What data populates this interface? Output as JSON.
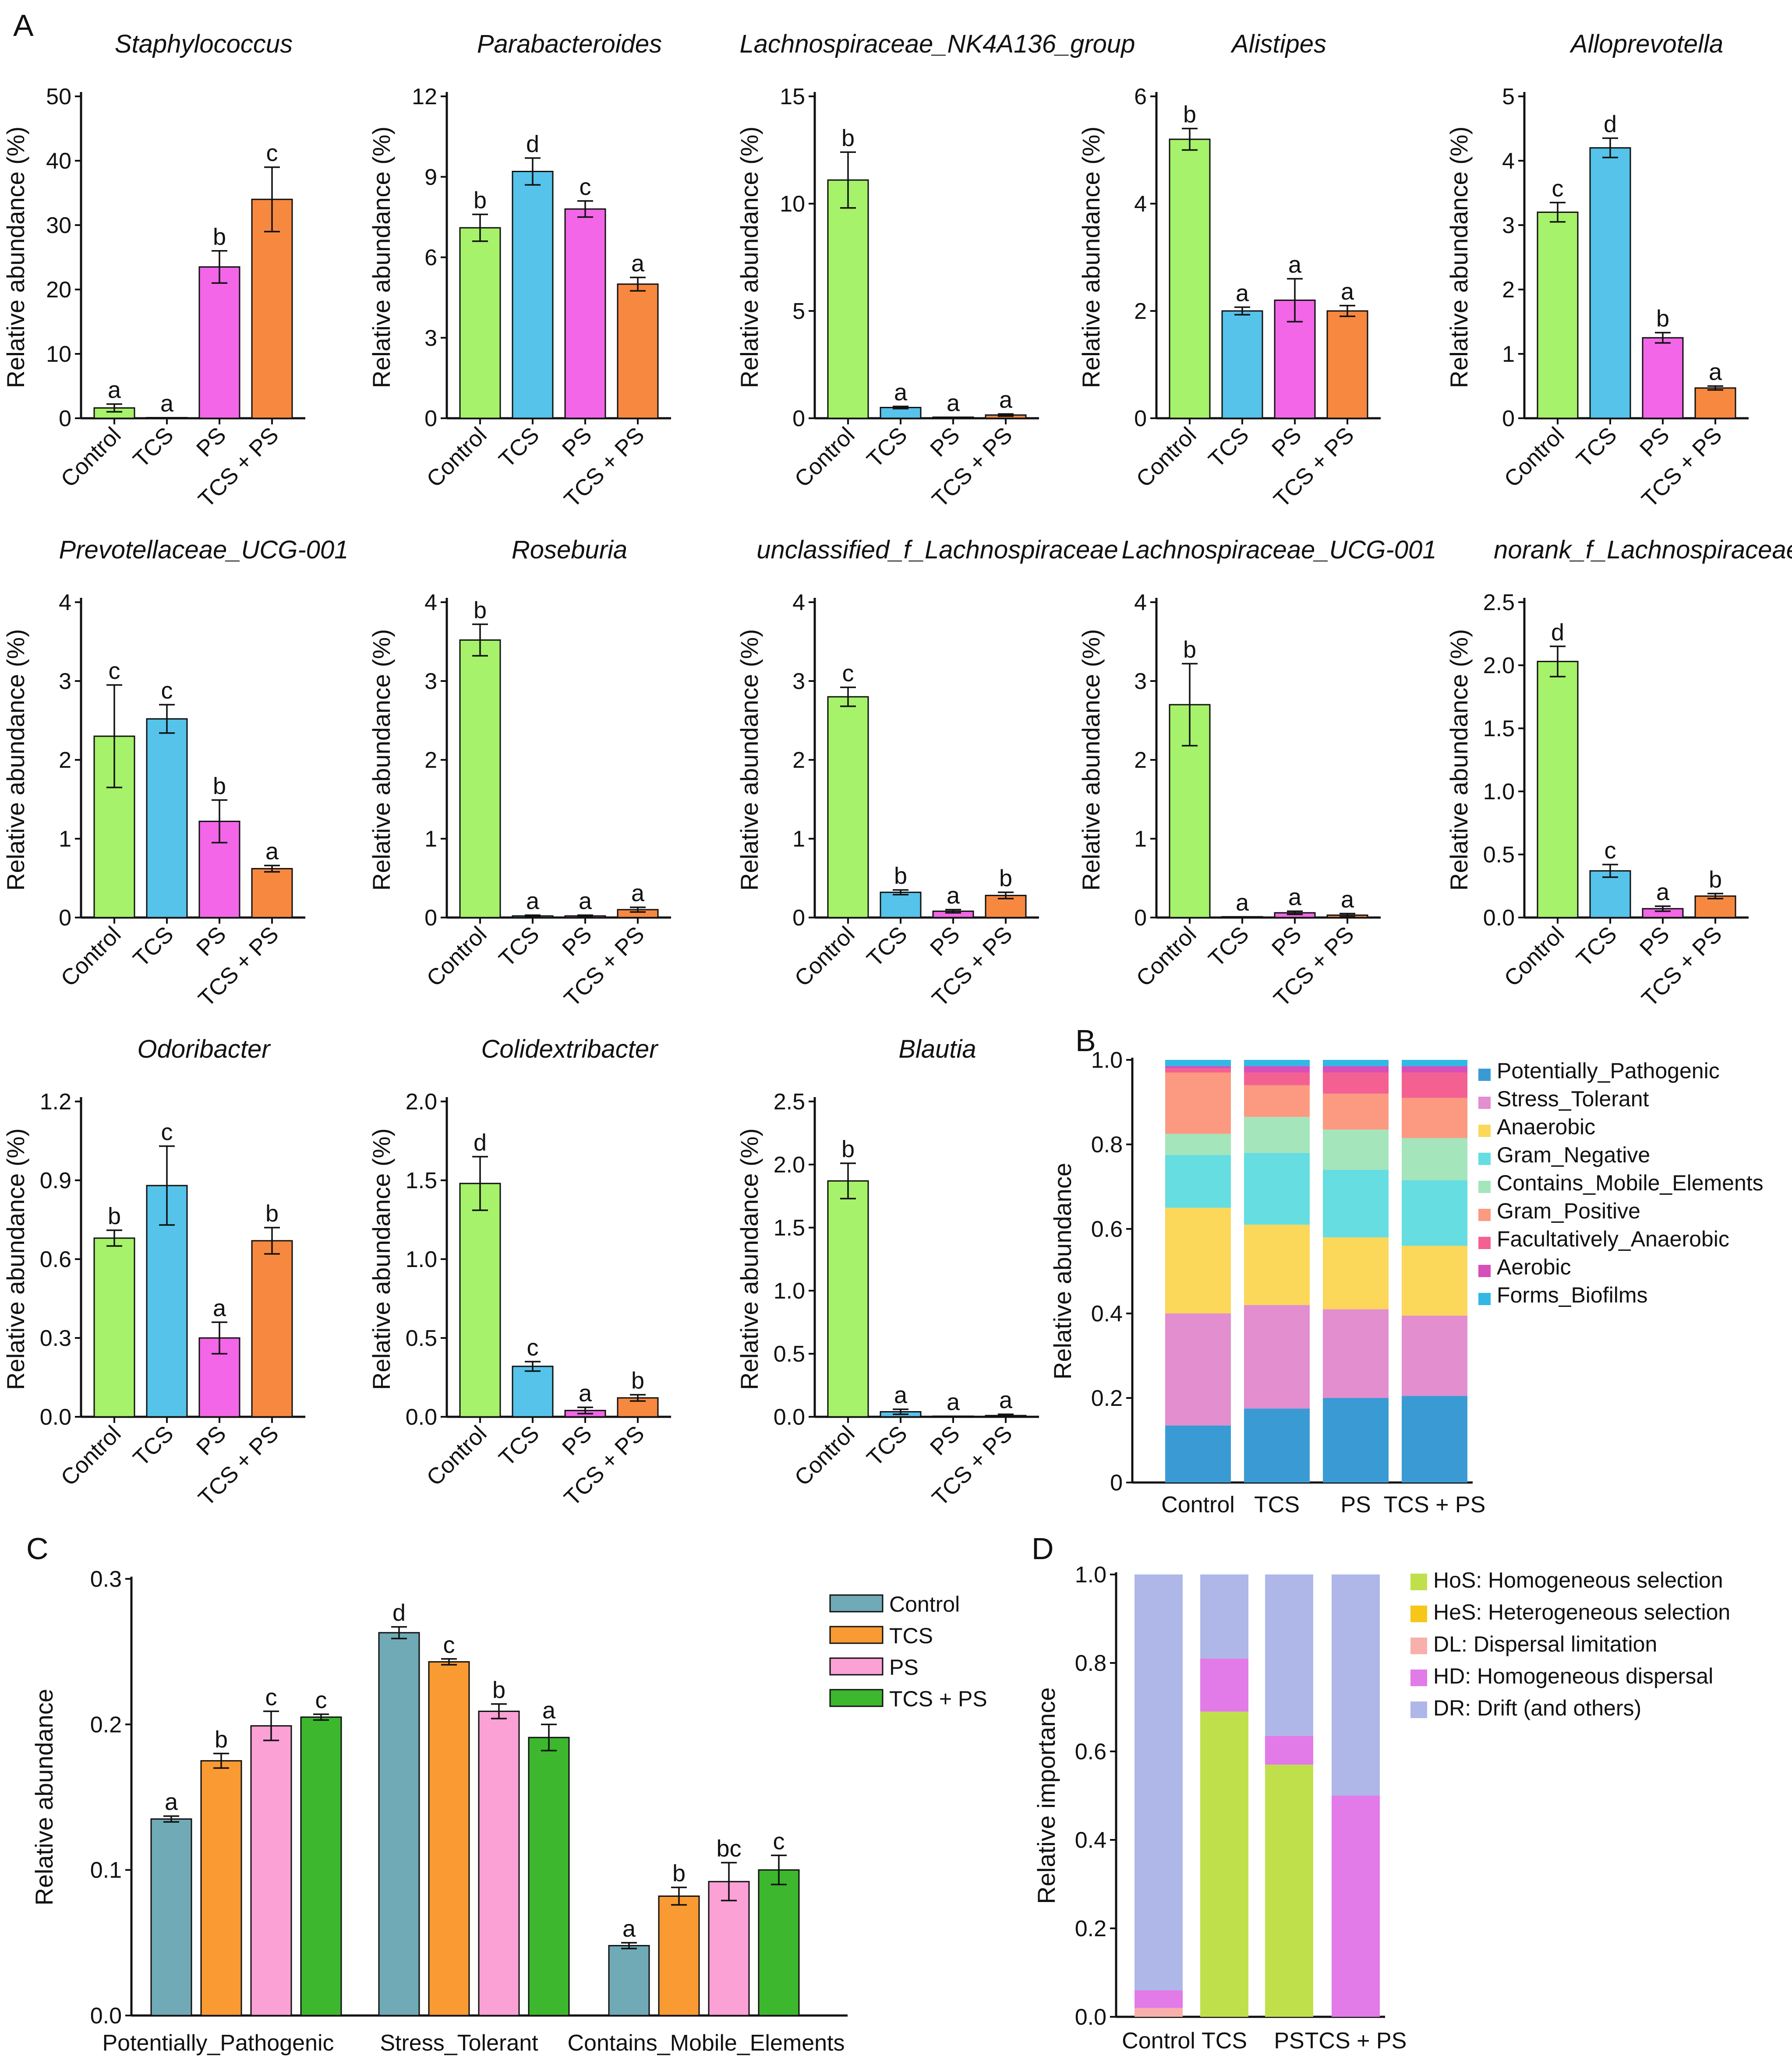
{
  "figure": {
    "panel_labels": [
      "A",
      "B",
      "C",
      "D"
    ]
  },
  "colors": {
    "Control": "#a6f26a",
    "TCS": "#55c3ea",
    "PS": "#f266e7",
    "TCS + PS": "#f78840"
  },
  "chart_data": [
    {
      "type": "bar",
      "panel": "A",
      "title": "Staphylococcus",
      "ylabel": "Relative abundance (%)",
      "categories": [
        "Control",
        "TCS",
        "PS",
        "TCS + PS"
      ],
      "values": [
        1.6,
        0.1,
        23.5,
        34
      ],
      "errors": [
        0.6,
        0,
        2.5,
        5
      ],
      "significance": [
        "a",
        "a",
        "b",
        "c"
      ],
      "ylim": [
        0,
        50
      ],
      "yticks": [
        "0",
        "10",
        "20",
        "30",
        "40",
        "50"
      ]
    },
    {
      "type": "bar",
      "panel": "A",
      "title": "Parabacteroides",
      "ylabel": "Relative abundance (%)",
      "categories": [
        "Control",
        "TCS",
        "PS",
        "TCS + PS"
      ],
      "values": [
        7.1,
        9.2,
        7.8,
        5.0
      ],
      "errors": [
        0.5,
        0.5,
        0.3,
        0.25
      ],
      "significance": [
        "b",
        "d",
        "c",
        "a"
      ],
      "ylim": [
        0,
        12
      ],
      "yticks": [
        "0",
        "3",
        "6",
        "9",
        "12"
      ]
    },
    {
      "type": "bar",
      "panel": "A",
      "title": "Lachnospiraceae_NK4A136_group",
      "ylabel": "Relative abundance (%)",
      "categories": [
        "Control",
        "TCS",
        "PS",
        "TCS + PS"
      ],
      "values": [
        11.1,
        0.5,
        0.05,
        0.15
      ],
      "errors": [
        1.3,
        0.05,
        0,
        0.05
      ],
      "significance": [
        "b",
        "a",
        "a",
        "a"
      ],
      "ylim": [
        0,
        15
      ],
      "yticks": [
        "0",
        "5",
        "10",
        "15"
      ]
    },
    {
      "type": "bar",
      "panel": "A",
      "title": "Alistipes",
      "ylabel": "Relative abundance (%)",
      "categories": [
        "Control",
        "TCS",
        "PS",
        "TCS + PS"
      ],
      "values": [
        5.2,
        2.0,
        2.2,
        2.0
      ],
      "errors": [
        0.2,
        0.07,
        0.4,
        0.1
      ],
      "significance": [
        "b",
        "a",
        "a",
        "a"
      ],
      "ylim": [
        0,
        6
      ],
      "yticks": [
        "0",
        "2",
        "4",
        "6"
      ]
    },
    {
      "type": "bar",
      "panel": "A",
      "title": "Alloprevotella",
      "ylabel": "Relative abundance (%)",
      "categories": [
        "Control",
        "TCS",
        "PS",
        "TCS + PS"
      ],
      "values": [
        3.2,
        4.2,
        1.25,
        0.47
      ],
      "errors": [
        0.15,
        0.15,
        0.08,
        0.03
      ],
      "significance": [
        "c",
        "d",
        "b",
        "a"
      ],
      "ylim": [
        0,
        5
      ],
      "yticks": [
        "0",
        "1",
        "2",
        "3",
        "4",
        "5"
      ]
    },
    {
      "type": "bar",
      "panel": "A",
      "title": "Prevotellaceae_UCG-001",
      "ylabel": "Relative abundance (%)",
      "categories": [
        "Control",
        "TCS",
        "PS",
        "TCS + PS"
      ],
      "values": [
        2.3,
        2.52,
        1.22,
        0.62
      ],
      "errors": [
        0.65,
        0.18,
        0.27,
        0.04
      ],
      "significance": [
        "c",
        "c",
        "b",
        "a"
      ],
      "ylim": [
        0,
        4
      ],
      "yticks": [
        "0",
        "1",
        "2",
        "3",
        "4"
      ]
    },
    {
      "type": "bar",
      "panel": "A",
      "title": "Roseburia",
      "ylabel": "Relative abundance (%)",
      "categories": [
        "Control",
        "TCS",
        "PS",
        "TCS + PS"
      ],
      "values": [
        3.52,
        0.02,
        0.02,
        0.1
      ],
      "errors": [
        0.2,
        0.01,
        0.01,
        0.03
      ],
      "significance": [
        "b",
        "a",
        "a",
        "a"
      ],
      "ylim": [
        0,
        4
      ],
      "yticks": [
        "0",
        "1",
        "2",
        "3",
        "4"
      ]
    },
    {
      "type": "bar",
      "panel": "A",
      "title": "unclassified_f_Lachnospiraceae",
      "ylabel": "Relative abundance (%)",
      "categories": [
        "Control",
        "TCS",
        "PS",
        "TCS + PS"
      ],
      "values": [
        2.8,
        0.32,
        0.08,
        0.28
      ],
      "errors": [
        0.12,
        0.03,
        0.02,
        0.04
      ],
      "significance": [
        "c",
        "b",
        "a",
        "b"
      ],
      "ylim": [
        0,
        4
      ],
      "yticks": [
        "0",
        "1",
        "2",
        "3",
        "4"
      ]
    },
    {
      "type": "bar",
      "panel": "A",
      "title": "Lachnospiraceae_UCG-001",
      "ylabel": "Relative abundance (%)",
      "categories": [
        "Control",
        "TCS",
        "PS",
        "TCS + PS"
      ],
      "values": [
        2.7,
        0.01,
        0.06,
        0.03
      ],
      "errors": [
        0.52,
        0,
        0.02,
        0.02
      ],
      "significance": [
        "b",
        "a",
        "a",
        "a"
      ],
      "ylim": [
        0,
        4
      ],
      "yticks": [
        "0",
        "1",
        "2",
        "3",
        "4"
      ]
    },
    {
      "type": "bar",
      "panel": "A",
      "title": "norank_f_Lachnospiraceae",
      "ylabel": "Relative abundance (%)",
      "categories": [
        "Control",
        "TCS",
        "PS",
        "TCS + PS"
      ],
      "values": [
        2.03,
        0.37,
        0.07,
        0.17
      ],
      "errors": [
        0.12,
        0.05,
        0.02,
        0.02
      ],
      "significance": [
        "d",
        "c",
        "a",
        "b"
      ],
      "ylim": [
        0,
        2.5
      ],
      "yticks": [
        "0.0",
        "0.5",
        "1.0",
        "1.5",
        "2.0",
        "2.5"
      ]
    },
    {
      "type": "bar",
      "panel": "A",
      "title": "Odoribacter",
      "ylabel": "Relative abundance (%)",
      "categories": [
        "Control",
        "TCS",
        "PS",
        "TCS + PS"
      ],
      "values": [
        0.68,
        0.88,
        0.3,
        0.67
      ],
      "errors": [
        0.03,
        0.15,
        0.06,
        0.05
      ],
      "significance": [
        "b",
        "c",
        "a",
        "b"
      ],
      "ylim": [
        0,
        1.2
      ],
      "yticks": [
        "0.0",
        "0.3",
        "0.6",
        "0.9",
        "1.2"
      ]
    },
    {
      "type": "bar",
      "panel": "A",
      "title": "Colidextribacter",
      "ylabel": "Relative abundance (%)",
      "categories": [
        "Control",
        "TCS",
        "PS",
        "TCS + PS"
      ],
      "values": [
        1.48,
        0.32,
        0.04,
        0.12
      ],
      "errors": [
        0.17,
        0.03,
        0.02,
        0.02
      ],
      "significance": [
        "d",
        "c",
        "a",
        "b"
      ],
      "ylim": [
        0,
        2.0
      ],
      "yticks": [
        "0.0",
        "0.5",
        "1.0",
        "1.5",
        "2.0"
      ]
    },
    {
      "type": "bar",
      "panel": "A",
      "title": "Blautia",
      "ylabel": "Relative abundance (%)",
      "categories": [
        "Control",
        "TCS",
        "PS",
        "TCS + PS"
      ],
      "values": [
        1.87,
        0.04,
        0.005,
        0.01
      ],
      "errors": [
        0.14,
        0.02,
        0,
        0.01
      ],
      "significance": [
        "b",
        "a",
        "a",
        "a"
      ],
      "ylim": [
        0,
        2.5
      ],
      "yticks": [
        "0.0",
        "0.5",
        "1.0",
        "1.5",
        "2.0",
        "2.5"
      ]
    },
    {
      "type": "stacked_bar",
      "panel": "B",
      "ylabel": "Relative abundance",
      "categories": [
        "Control",
        "TCS",
        "PS",
        "TCS + PS"
      ],
      "ylim": [
        0,
        1.0
      ],
      "yticks": [
        "0",
        "0.2",
        "0.4",
        "0.6",
        "0.8",
        "1.0"
      ],
      "series": [
        {
          "name": "Potentially_Pathogenic",
          "color": "#3a9bd4",
          "values": [
            0.135,
            0.175,
            0.2,
            0.205
          ]
        },
        {
          "name": "Stress_Tolerant",
          "color": "#e28ecf",
          "values": [
            0.265,
            0.245,
            0.21,
            0.19
          ]
        },
        {
          "name": "Anaerobic",
          "color": "#fbd75a",
          "values": [
            0.25,
            0.19,
            0.17,
            0.165
          ]
        },
        {
          "name": "Gram_Negative",
          "color": "#66dde0",
          "values": [
            0.125,
            0.17,
            0.16,
            0.155
          ]
        },
        {
          "name": "Contains_Mobile_Elements",
          "color": "#a4e5bc",
          "values": [
            0.05,
            0.085,
            0.095,
            0.1
          ]
        },
        {
          "name": "Gram_Positive",
          "color": "#fb9a80",
          "values": [
            0.145,
            0.075,
            0.085,
            0.095
          ]
        },
        {
          "name": "Facultatively_Anaerobic",
          "color": "#f46092",
          "values": [
            0.01,
            0.03,
            0.05,
            0.06
          ]
        },
        {
          "name": "Aerobic",
          "color": "#d64fba",
          "values": [
            0.005,
            0.015,
            0.015,
            0.015
          ]
        },
        {
          "name": "Forms_Biofilms",
          "color": "#33b8e6",
          "values": [
            0.015,
            0.015,
            0.015,
            0.015
          ]
        }
      ]
    },
    {
      "type": "bar",
      "panel": "C",
      "ylabel": "Relative abundance",
      "categories": [
        "Potentially_Pathogenic",
        "Stress_Tolerant",
        "Contains_Mobile_Elements"
      ],
      "ylim": [
        0,
        0.3
      ],
      "yticks": [
        "0.0",
        "0.1",
        "0.2",
        "0.3"
      ],
      "series": [
        {
          "name": "Control",
          "color": "#6faab6",
          "values": [
            0.135,
            0.263,
            0.048
          ],
          "errors": [
            0.002,
            0.004,
            0.002
          ],
          "significance": [
            "a",
            "d",
            "a"
          ]
        },
        {
          "name": "TCS",
          "color": "#fa9a32",
          "values": [
            0.175,
            0.243,
            0.082
          ],
          "errors": [
            0.005,
            0.002,
            0.006
          ],
          "significance": [
            "b",
            "c",
            "b"
          ]
        },
        {
          "name": "PS",
          "color": "#fba1d6",
          "values": [
            0.199,
            0.209,
            0.092
          ],
          "errors": [
            0.01,
            0.005,
            0.013
          ],
          "significance": [
            "c",
            "b",
            "bc"
          ]
        },
        {
          "name": "TCS + PS",
          "color": "#3cb72e",
          "values": [
            0.205,
            0.191,
            0.1
          ],
          "errors": [
            0.002,
            0.009,
            0.01
          ],
          "significance": [
            "c",
            "a",
            "c"
          ]
        }
      ]
    },
    {
      "type": "stacked_bar",
      "panel": "D",
      "ylabel": "Relative importance",
      "categories": [
        "Control",
        "TCS",
        "PS",
        "TCS + PS"
      ],
      "ylim": [
        0,
        1.0
      ],
      "yticks": [
        "0.0",
        "0.2",
        "0.4",
        "0.6",
        "0.8",
        "1.0"
      ],
      "series": [
        {
          "name": "HoS: Homogeneous selection",
          "color": "#c0e04b",
          "values": [
            0,
            0.69,
            0.57,
            0
          ]
        },
        {
          "name": "HeS: Heterogeneous selection",
          "color": "#f7c61a",
          "values": [
            0,
            0,
            0,
            0
          ]
        },
        {
          "name": "DL: Dispersal limitation",
          "color": "#f8b0ab",
          "values": [
            0.02,
            0,
            0,
            0
          ]
        },
        {
          "name": "HD: Homogeneous dispersal",
          "color": "#e27ae8",
          "values": [
            0.04,
            0.12,
            0.065,
            0.5
          ]
        },
        {
          "name": "DR: Drift (and others)",
          "color": "#aeb7e8",
          "values": [
            0.94,
            0.19,
            0.365,
            0.5
          ]
        }
      ]
    }
  ]
}
